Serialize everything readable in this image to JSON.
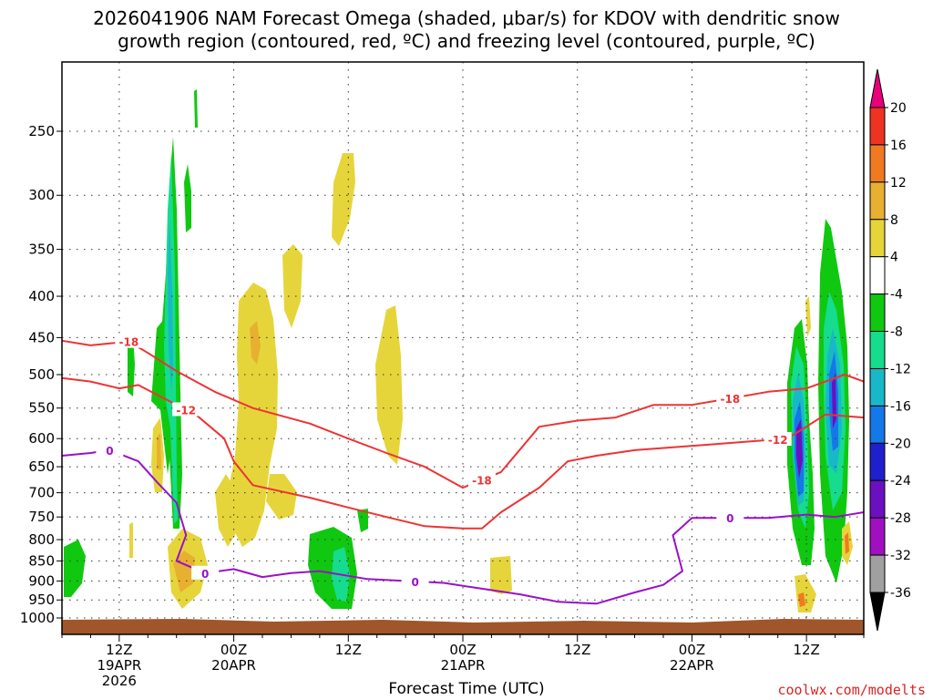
{
  "title": {
    "line1": "2026041906 NAM Forecast Omega (shaded, μbar/s) for KDOV with dendritic snow",
    "line2": "growth region (contoured, red, ºC) and freezing level (contoured, purple, ºC)"
  },
  "xlabel": "Forecast Time (UTC)",
  "credit": "coolwx.com/modelts",
  "chart_data": {
    "type": "heatmap",
    "title": "2026041906 NAM Forecast Omega (shaded, μbar/s) for KDOV with dendritic snow growth region (contoured, red, ºC) and freezing level (contoured, purple, ºC)",
    "xlabel": "Forecast Time (UTC)",
    "ylabel": "",
    "x_range_hours": [
      0,
      84
    ],
    "y_pressure_levels": [
      "250",
      "300",
      "350",
      "400",
      "450",
      "500",
      "550",
      "600",
      "650",
      "700",
      "750",
      "800",
      "850",
      "900",
      "950",
      "1000"
    ],
    "x_ticks": [
      {
        "hour": 6,
        "lines": [
          "12Z",
          "19APR",
          "2026"
        ]
      },
      {
        "hour": 18,
        "lines": [
          "00Z",
          "20APR"
        ]
      },
      {
        "hour": 30,
        "lines": [
          "12Z"
        ]
      },
      {
        "hour": 42,
        "lines": [
          "00Z",
          "21APR"
        ]
      },
      {
        "hour": 54,
        "lines": [
          "12Z"
        ]
      },
      {
        "hour": 66,
        "lines": [
          "00Z",
          "22APR"
        ]
      },
      {
        "hour": 78,
        "lines": [
          "12Z"
        ]
      }
    ],
    "colorbar": {
      "levels": [
        "20",
        "16",
        "12",
        "8",
        "4",
        "-4",
        "-8",
        "-12",
        "-16",
        "-20",
        "-24",
        "-28",
        "-32",
        "-36"
      ],
      "colors": [
        "#e8007a",
        "#ee3322",
        "#f07a22",
        "#e8b030",
        "#e6d53a",
        "#ffffff",
        "#10c810",
        "#16dc8e",
        "#18b8c8",
        "#1478e8",
        "#1e20cc",
        "#6a10c0",
        "#a010c0",
        "#a0a0a0",
        "#000000"
      ]
    },
    "contours": {
      "dendritic_snow_growth_red": [
        {
          "label": "-18",
          "points": [
            [
              0,
              454
            ],
            [
              3,
              460
            ],
            [
              7,
              455
            ],
            [
              9,
              470
            ],
            [
              12,
              495
            ],
            [
              16,
              525
            ],
            [
              20,
              550
            ],
            [
              26,
              575
            ],
            [
              30,
              600
            ],
            [
              34,
              625
            ],
            [
              38,
              650
            ],
            [
              42,
              690
            ],
            [
              46,
              660
            ],
            [
              50,
              580
            ],
            [
              54,
              570
            ],
            [
              58,
              565
            ],
            [
              62,
              545
            ],
            [
              66,
              545
            ],
            [
              70,
              535
            ],
            [
              74,
              525
            ],
            [
              78,
              520
            ],
            [
              82,
              500
            ],
            [
              84,
              510
            ]
          ]
        },
        {
          "label": "-12",
          "points": [
            [
              0,
              505
            ],
            [
              3,
              510
            ],
            [
              6,
              520
            ],
            [
              8,
              515
            ],
            [
              10,
              530
            ],
            [
              14,
              560
            ],
            [
              17,
              600
            ],
            [
              18,
              640
            ],
            [
              20,
              685
            ],
            [
              26,
              710
            ],
            [
              30,
              730
            ],
            [
              34,
              750
            ],
            [
              38,
              770
            ],
            [
              42,
              775
            ],
            [
              44,
              775
            ],
            [
              46,
              740
            ],
            [
              50,
              690
            ],
            [
              53,
              640
            ],
            [
              56,
              630
            ],
            [
              60,
              620
            ],
            [
              64,
              615
            ],
            [
              68,
              610
            ],
            [
              72,
              605
            ],
            [
              76,
              600
            ],
            [
              80,
              560
            ],
            [
              84,
              565
            ]
          ]
        }
      ],
      "freezing_level_purple": [
        {
          "label": "0",
          "points": [
            [
              0,
              630
            ],
            [
              3,
              625
            ],
            [
              5,
              620
            ],
            [
              8,
              640
            ],
            [
              10,
              680
            ],
            [
              12,
              720
            ],
            [
              13,
              790
            ],
            [
              12,
              850
            ],
            [
              15,
              880
            ],
            [
              18,
              870
            ],
            [
              21,
              890
            ],
            [
              24,
              880
            ],
            [
              27,
              875
            ],
            [
              32,
              895
            ],
            [
              36,
              900
            ],
            [
              40,
              905
            ],
            [
              44,
              920
            ],
            [
              48,
              935
            ],
            [
              52,
              955
            ],
            [
              56,
              960
            ],
            [
              60,
              930
            ],
            [
              63,
              910
            ],
            [
              65,
              875
            ],
            [
              64,
              790
            ],
            [
              66,
              752
            ],
            [
              70,
              752
            ],
            [
              74,
              752
            ],
            [
              78,
              745
            ],
            [
              81,
              750
            ],
            [
              84,
              740
            ]
          ]
        }
      ]
    }
  }
}
